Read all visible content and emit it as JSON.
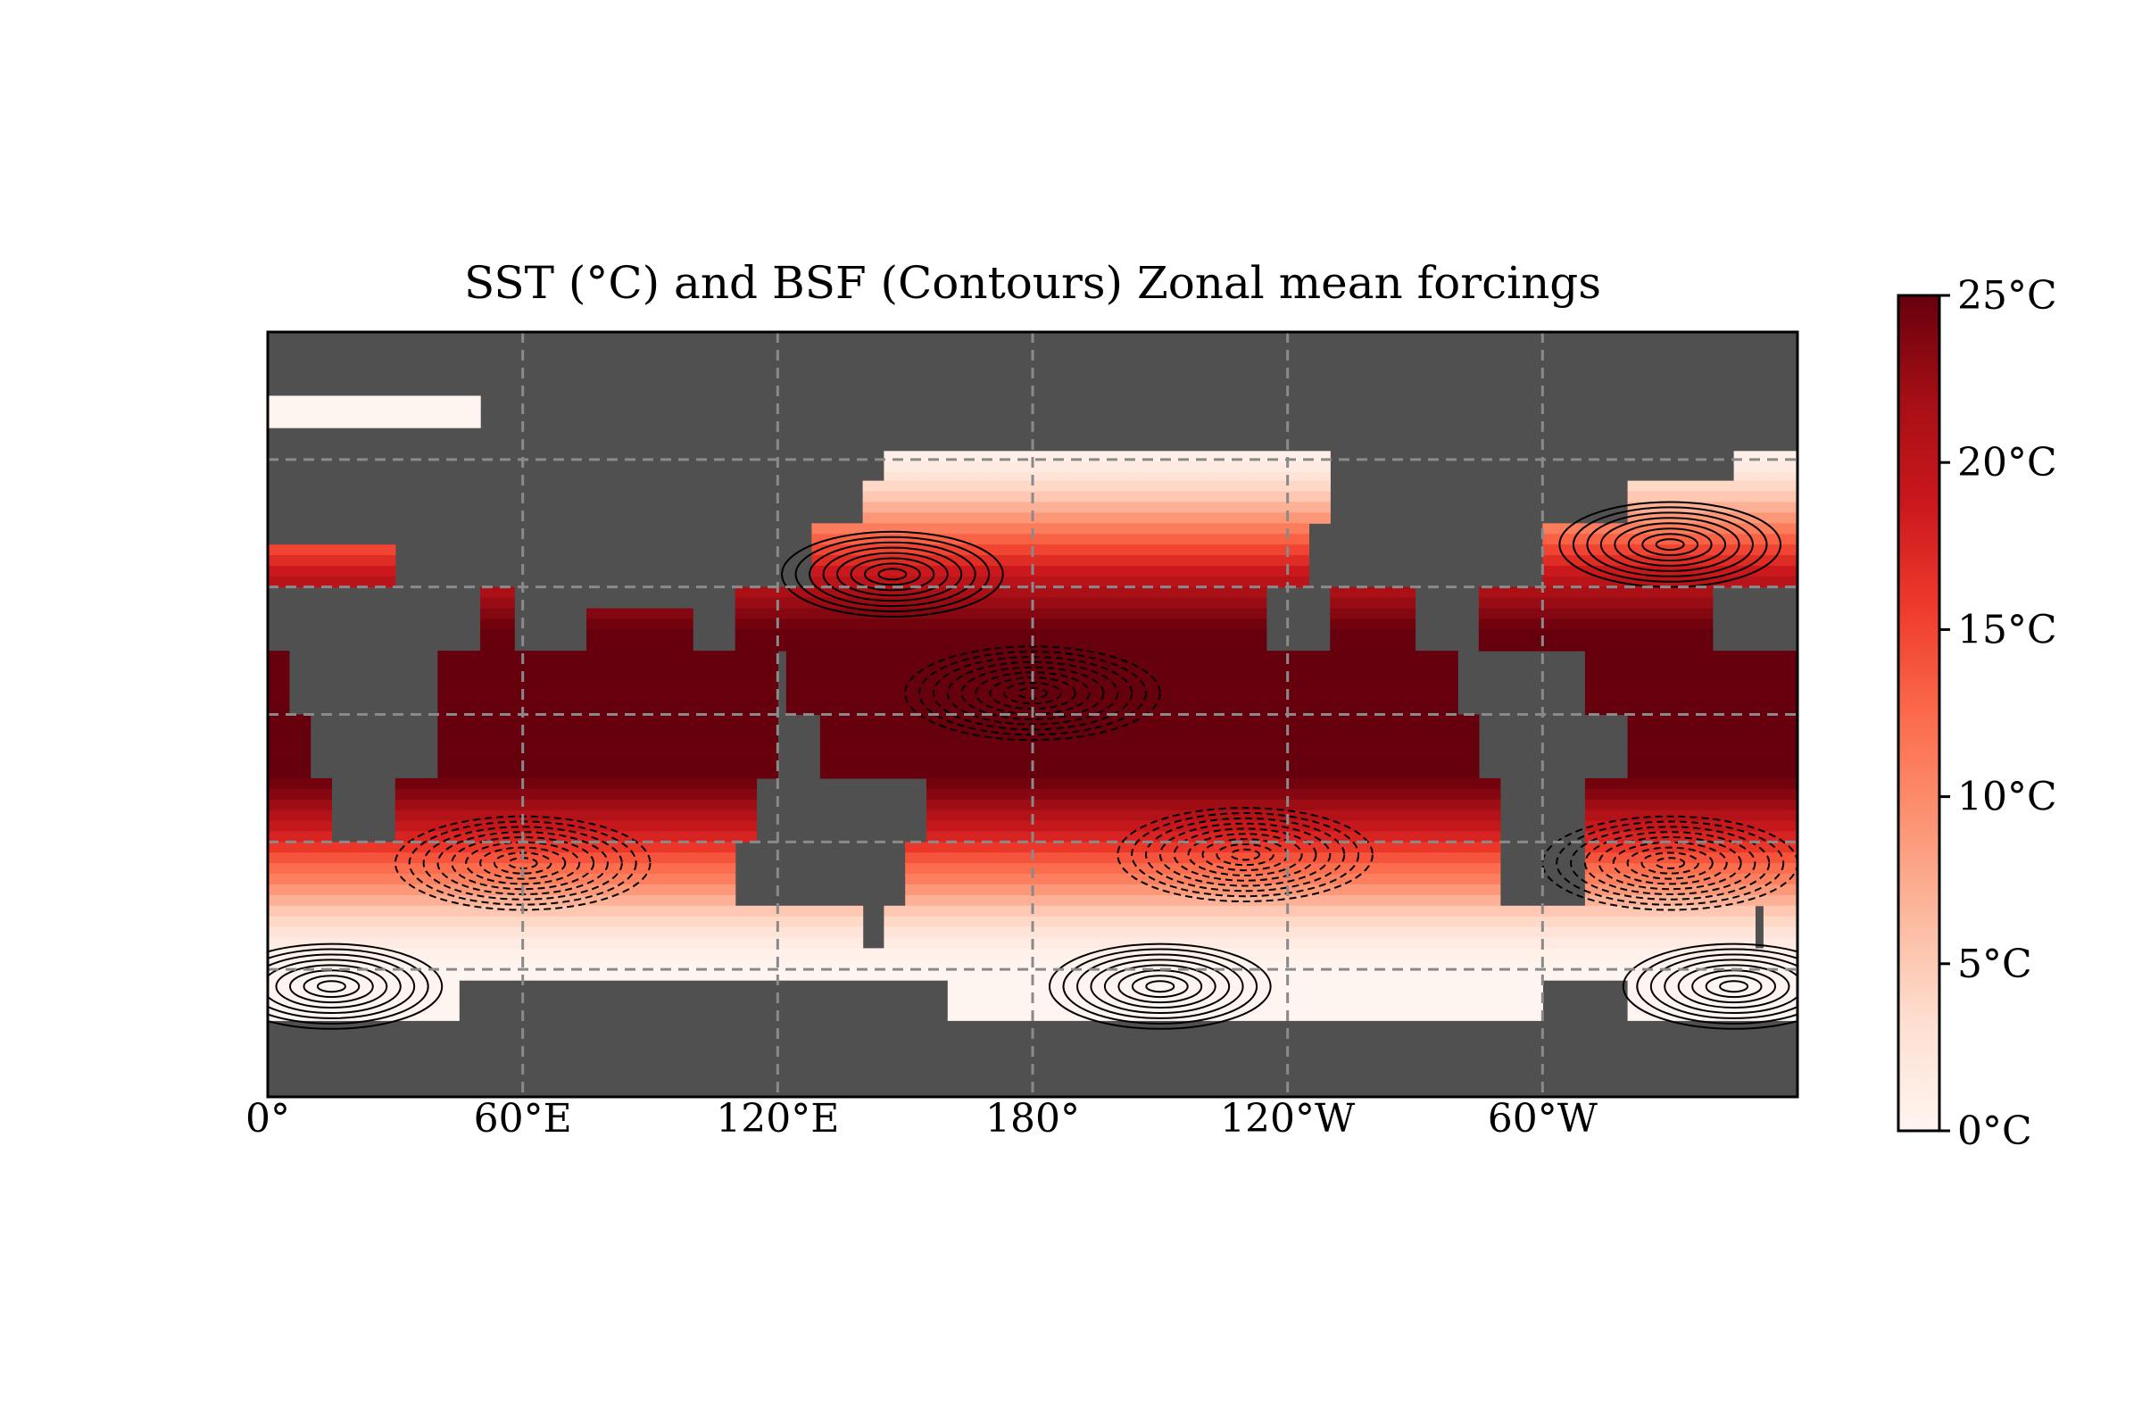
{
  "chart_data": {
    "type": "heatmap",
    "title": "SST (°C) and BSF (Contours) Zonal mean forcings",
    "xlabel": "",
    "ylabel": "",
    "x_ticks": [
      "0°",
      "60°E",
      "120°E",
      "180°",
      "120°W",
      "60°W"
    ],
    "x_tick_lon": [
      0,
      60,
      120,
      180,
      240,
      300
    ],
    "xlim": [
      0,
      360
    ],
    "ylim": [
      -90,
      90
    ],
    "grid": true,
    "grid_lon": [
      60,
      120,
      180,
      240,
      300
    ],
    "grid_lat": [
      -60,
      -30,
      0,
      30,
      60
    ],
    "land_color": "#505050",
    "colorbar": {
      "ticks": [
        "0°C",
        "5°C",
        "10°C",
        "15°C",
        "20°C",
        "25°C"
      ],
      "tick_values": [
        0,
        5,
        10,
        15,
        20,
        25
      ],
      "range": [
        0,
        25
      ],
      "cmap": [
        "#fff5f0",
        "#fee0d2",
        "#fcbba1",
        "#fc9272",
        "#fb6a4a",
        "#ef3b2c",
        "#cb181d",
        "#a50f15",
        "#67000d"
      ]
    },
    "sst_zonal_mean": {
      "lat": [
        -65,
        -60,
        -55,
        -50,
        -45,
        -40,
        -35,
        -30,
        -25,
        -20,
        -15,
        -10,
        -5,
        0,
        5,
        10,
        15,
        20,
        25,
        30,
        35,
        40,
        45,
        50,
        55,
        60,
        65,
        70,
        75
      ],
      "value": [
        0,
        0,
        1,
        3,
        6,
        10,
        13,
        17,
        20,
        23,
        25,
        25,
        25,
        25,
        25,
        25,
        25,
        25,
        23,
        21,
        18,
        14,
        10,
        6,
        3,
        1,
        0,
        0,
        0
      ]
    },
    "bsf_contours": {
      "positive_style": "solid",
      "negative_style": "dashed",
      "gyres": [
        {
          "lon": 147,
          "lat": 33,
          "sign": "positive"
        },
        {
          "lon": 330,
          "lat": 40,
          "sign": "positive"
        },
        {
          "lon": 210,
          "lat": -64,
          "sign": "positive"
        },
        {
          "lon": 345,
          "lat": -64,
          "sign": "positive"
        },
        {
          "lon": 15,
          "lat": -64,
          "sign": "positive"
        },
        {
          "lon": 180,
          "lat": 5,
          "sign": "negative"
        },
        {
          "lon": 60,
          "lat": -35,
          "sign": "negative"
        },
        {
          "lon": 330,
          "lat": -35,
          "sign": "negative"
        },
        {
          "lon": 230,
          "lat": -33,
          "sign": "negative"
        }
      ]
    }
  }
}
